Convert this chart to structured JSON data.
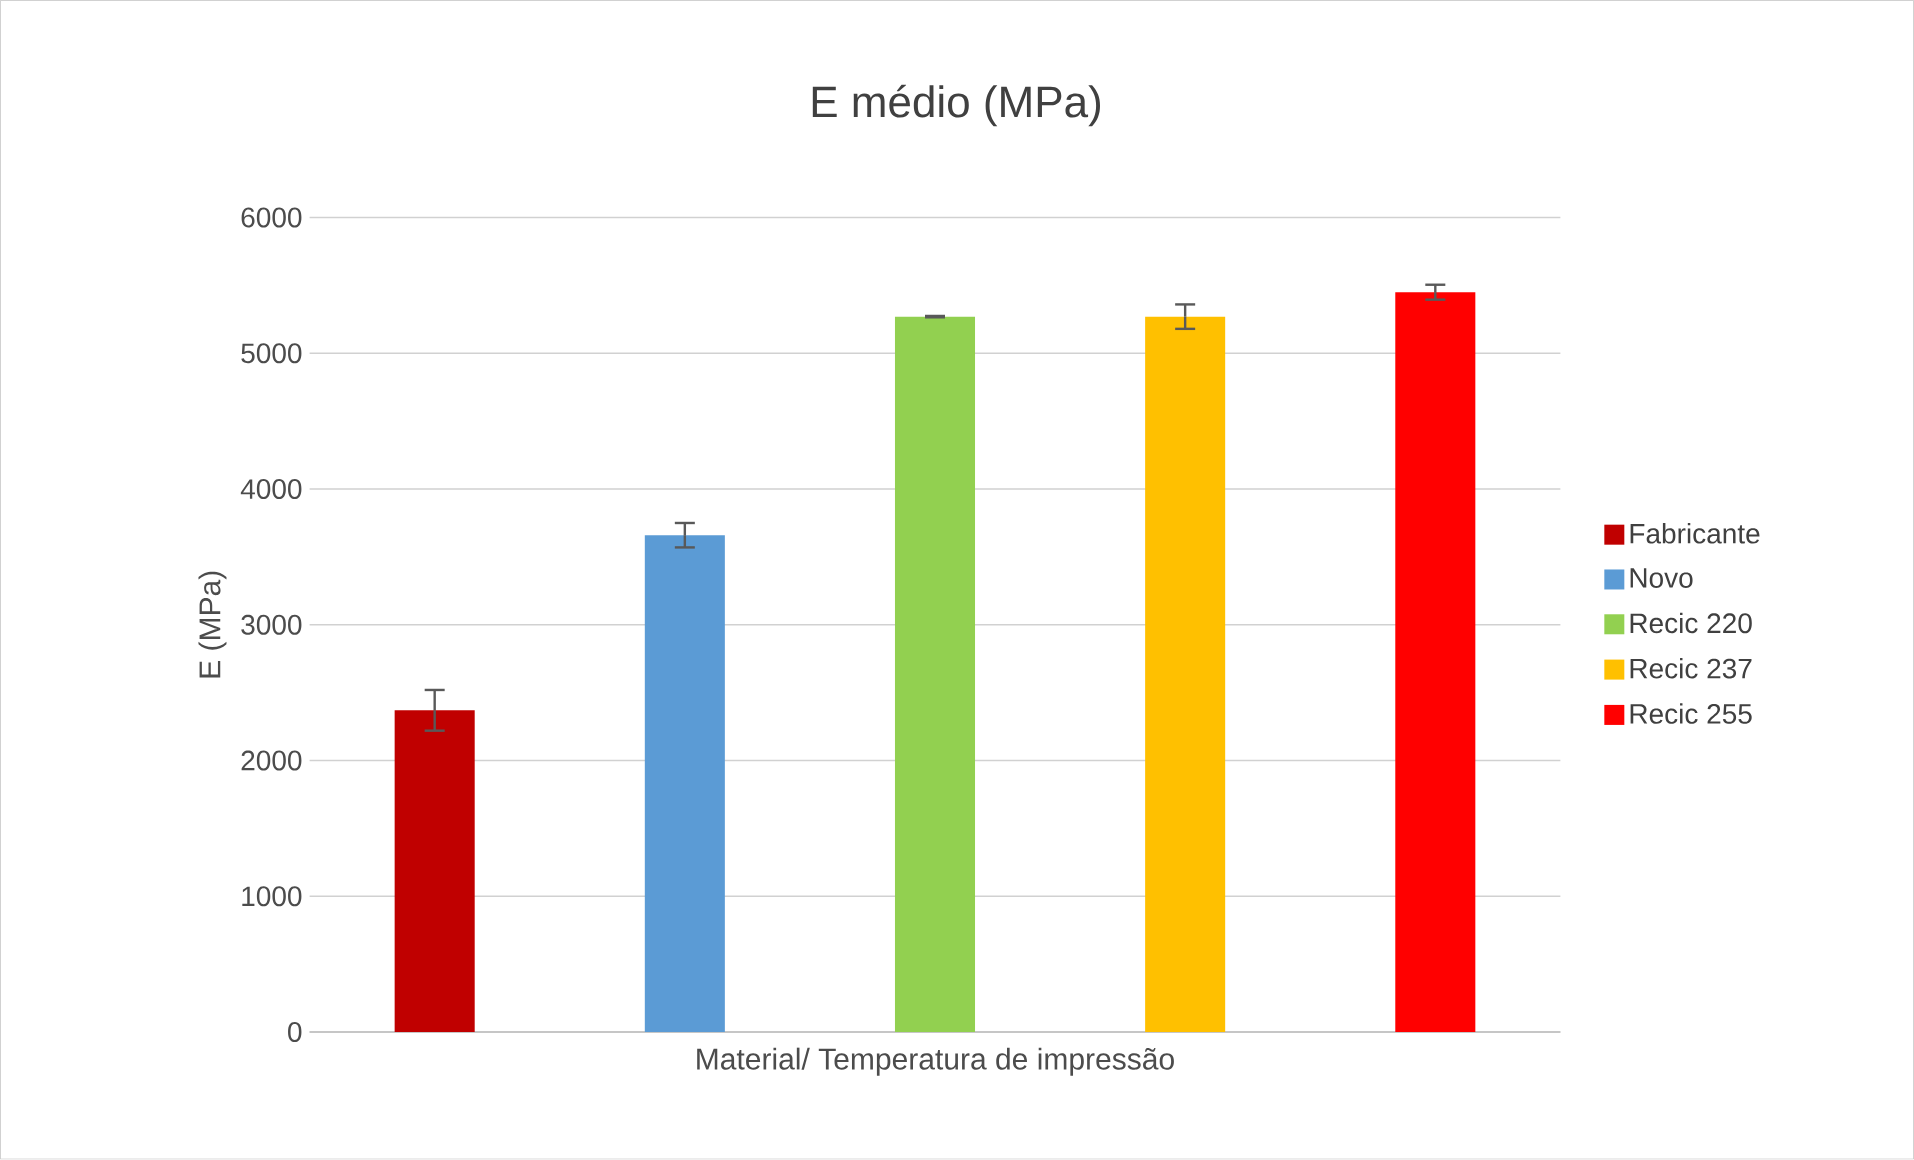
{
  "chart_data": {
    "type": "bar",
    "title": "E médio (MPa)",
    "xlabel": "Material/ Temperatura de impressão",
    "ylabel": "E (MPa)",
    "categories": [
      null
    ],
    "series": [
      {
        "name": "Fabricante",
        "color": "#c00000",
        "values": [
          2370
        ],
        "errors": [
          150
        ]
      },
      {
        "name": "Novo",
        "color": "#5b9bd5",
        "values": [
          3660
        ],
        "errors": [
          90
        ]
      },
      {
        "name": "Recic 220",
        "color": "#92d050",
        "values": [
          5270
        ],
        "errors": [
          5
        ]
      },
      {
        "name": "Recic 237",
        "color": "#ffc000",
        "values": [
          5270
        ],
        "errors": [
          90
        ]
      },
      {
        "name": "Recic 255",
        "color": "#ff0000",
        "values": [
          5450
        ],
        "errors": [
          55
        ]
      }
    ],
    "ylim": [
      0,
      6000
    ],
    "yticks": [
      0,
      1000,
      2000,
      3000,
      4000,
      5000,
      6000
    ],
    "grid": "y",
    "legend": "right"
  }
}
